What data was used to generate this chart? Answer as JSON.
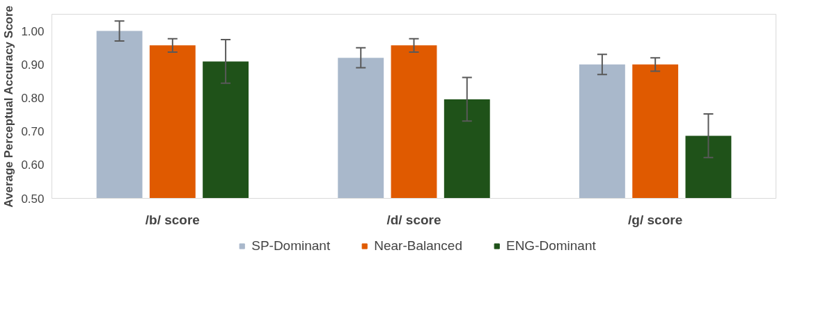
{
  "chart_data": {
    "type": "bar",
    "ylabel": "Average Perceptual Accuracy Score",
    "categories": [
      "/b/ score",
      "/d/ score",
      "/g/ score"
    ],
    "series": [
      {
        "name": "SP-Dominant",
        "color": "#a9b8cb",
        "values": [
          1.0,
          0.92,
          0.9
        ],
        "errors": [
          0.03,
          0.03,
          0.03
        ]
      },
      {
        "name": "Near-Balanced",
        "color": "#e05a00",
        "values": [
          0.957,
          0.957,
          0.9
        ],
        "errors": [
          0.02,
          0.02,
          0.02
        ]
      },
      {
        "name": "ENG-Dominant",
        "color": "#1f5219",
        "values": [
          0.909,
          0.796,
          0.687
        ],
        "errors": [
          0.065,
          0.065,
          0.065
        ]
      }
    ],
    "ylim": [
      0.5,
      1.05
    ],
    "yticks": [
      {
        "value": 0.5,
        "label": "0.50"
      },
      {
        "value": 0.6,
        "label": "0.60"
      },
      {
        "value": 0.7,
        "label": "0.70"
      },
      {
        "value": 0.8,
        "label": "0.80"
      },
      {
        "value": 0.9,
        "label": "0.90"
      },
      {
        "value": 1.0,
        "label": "1.00"
      }
    ],
    "grid": false,
    "legend": "bottom"
  }
}
